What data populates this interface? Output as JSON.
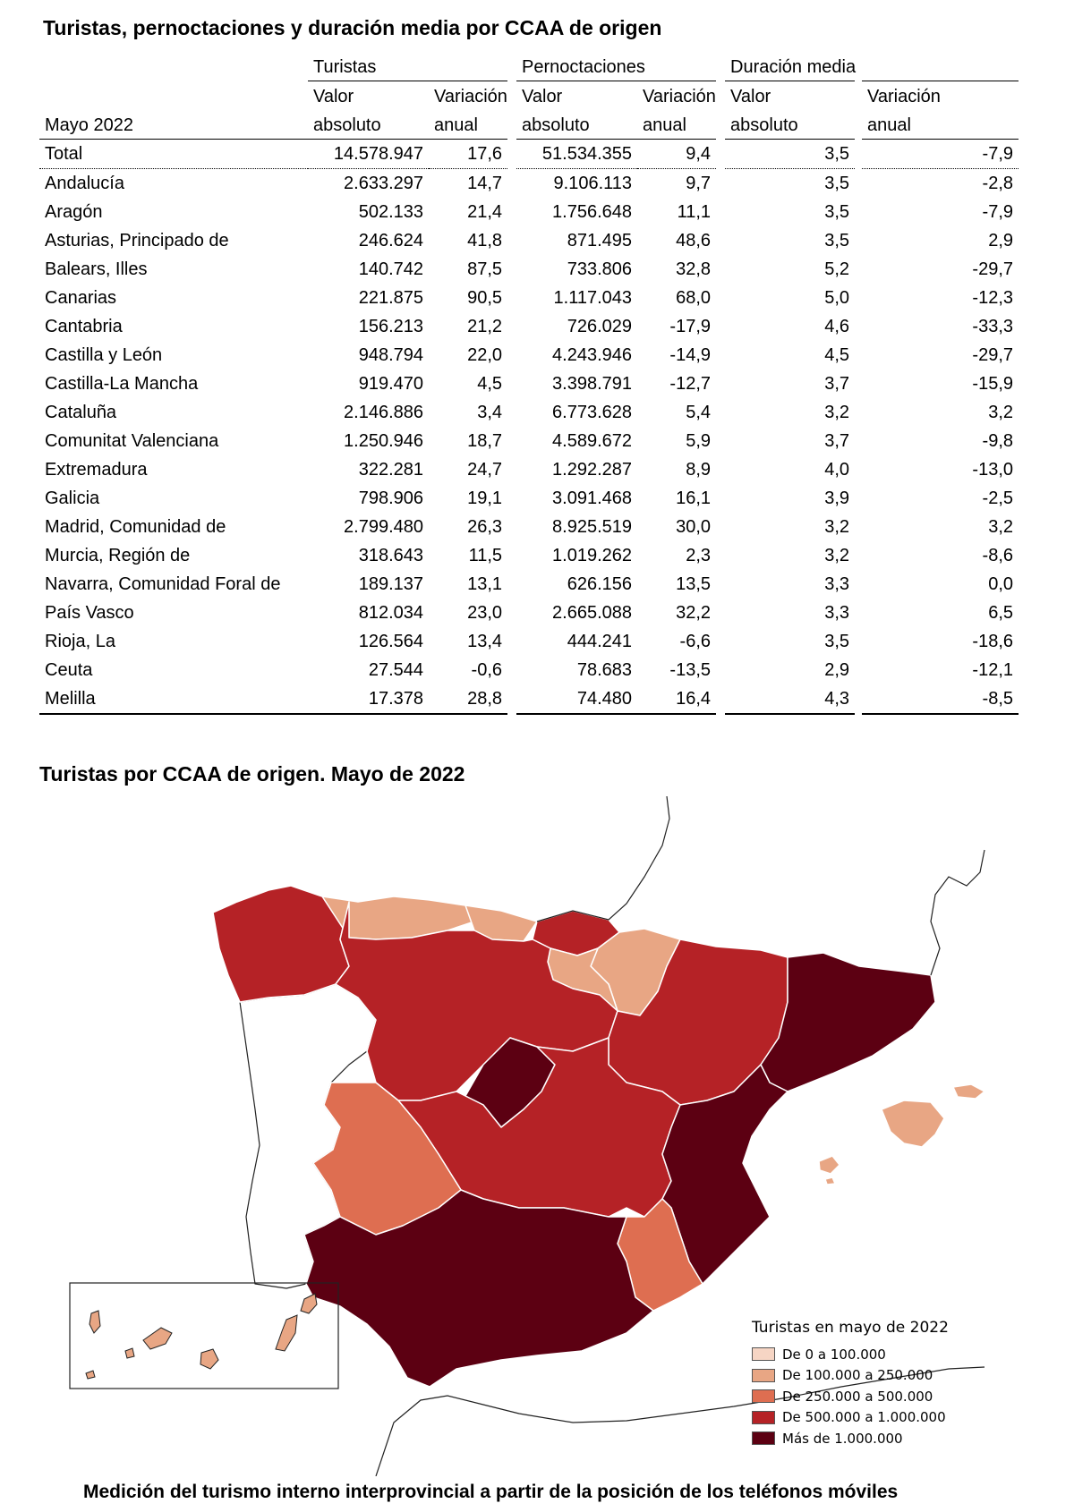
{
  "table": {
    "title": "Turistas, pernoctaciones y duración media por CCAA de origen",
    "period_label": "Mayo 2022",
    "groups": [
      "Turistas",
      "Pernoctaciones",
      "Duración media"
    ],
    "sub_top": [
      "Valor",
      "Variación",
      "Valor",
      "Variación",
      "Valor",
      "Variación"
    ],
    "sub_bottom": [
      "absoluto",
      "anual",
      "absoluto",
      "anual",
      "absoluto",
      "anual"
    ],
    "rows": [
      {
        "name": "Total",
        "t_abs": "14.578.947",
        "t_var": "17,6",
        "p_abs": "51.534.355",
        "p_var": "9,4",
        "d_abs": "3,5",
        "d_var": "-7,9"
      },
      {
        "name": "Andalucía",
        "t_abs": "2.633.297",
        "t_var": "14,7",
        "p_abs": "9.106.113",
        "p_var": "9,7",
        "d_abs": "3,5",
        "d_var": "-2,8"
      },
      {
        "name": "Aragón",
        "t_abs": "502.133",
        "t_var": "21,4",
        "p_abs": "1.756.648",
        "p_var": "11,1",
        "d_abs": "3,5",
        "d_var": "-7,9"
      },
      {
        "name": "Asturias, Principado de",
        "t_abs": "246.624",
        "t_var": "41,8",
        "p_abs": "871.495",
        "p_var": "48,6",
        "d_abs": "3,5",
        "d_var": "2,9"
      },
      {
        "name": "Balears, Illes",
        "t_abs": "140.742",
        "t_var": "87,5",
        "p_abs": "733.806",
        "p_var": "32,8",
        "d_abs": "5,2",
        "d_var": "-29,7"
      },
      {
        "name": "Canarias",
        "t_abs": "221.875",
        "t_var": "90,5",
        "p_abs": "1.117.043",
        "p_var": "68,0",
        "d_abs": "5,0",
        "d_var": "-12,3"
      },
      {
        "name": "Cantabria",
        "t_abs": "156.213",
        "t_var": "21,2",
        "p_abs": "726.029",
        "p_var": "-17,9",
        "d_abs": "4,6",
        "d_var": "-33,3"
      },
      {
        "name": "Castilla y León",
        "t_abs": "948.794",
        "t_var": "22,0",
        "p_abs": "4.243.946",
        "p_var": "-14,9",
        "d_abs": "4,5",
        "d_var": "-29,7"
      },
      {
        "name": "Castilla-La Mancha",
        "t_abs": "919.470",
        "t_var": "4,5",
        "p_abs": "3.398.791",
        "p_var": "-12,7",
        "d_abs": "3,7",
        "d_var": "-15,9"
      },
      {
        "name": "Cataluña",
        "t_abs": "2.146.886",
        "t_var": "3,4",
        "p_abs": "6.773.628",
        "p_var": "5,4",
        "d_abs": "3,2",
        "d_var": "3,2"
      },
      {
        "name": "Comunitat Valenciana",
        "t_abs": "1.250.946",
        "t_var": "18,7",
        "p_abs": "4.589.672",
        "p_var": "5,9",
        "d_abs": "3,7",
        "d_var": "-9,8"
      },
      {
        "name": "Extremadura",
        "t_abs": "322.281",
        "t_var": "24,7",
        "p_abs": "1.292.287",
        "p_var": "8,9",
        "d_abs": "4,0",
        "d_var": "-13,0"
      },
      {
        "name": "Galicia",
        "t_abs": "798.906",
        "t_var": "19,1",
        "p_abs": "3.091.468",
        "p_var": "16,1",
        "d_abs": "3,9",
        "d_var": "-2,5"
      },
      {
        "name": "Madrid, Comunidad de",
        "t_abs": "2.799.480",
        "t_var": "26,3",
        "p_abs": "8.925.519",
        "p_var": "30,0",
        "d_abs": "3,2",
        "d_var": "3,2"
      },
      {
        "name": "Murcia, Región de",
        "t_abs": "318.643",
        "t_var": "11,5",
        "p_abs": "1.019.262",
        "p_var": "2,3",
        "d_abs": "3,2",
        "d_var": "-8,6"
      },
      {
        "name": "Navarra, Comunidad Foral de",
        "t_abs": "189.137",
        "t_var": "13,1",
        "p_abs": "626.156",
        "p_var": "13,5",
        "d_abs": "3,3",
        "d_var": "0,0"
      },
      {
        "name": "País Vasco",
        "t_abs": "812.034",
        "t_var": "23,0",
        "p_abs": "2.665.088",
        "p_var": "32,2",
        "d_abs": "3,3",
        "d_var": "6,5"
      },
      {
        "name": "Rioja, La",
        "t_abs": "126.564",
        "t_var": "13,4",
        "p_abs": "444.241",
        "p_var": "-6,6",
        "d_abs": "3,5",
        "d_var": "-18,6"
      },
      {
        "name": "Ceuta",
        "t_abs": "27.544",
        "t_var": "-0,6",
        "p_abs": "78.683",
        "p_var": "-13,5",
        "d_abs": "2,9",
        "d_var": "-12,1"
      },
      {
        "name": "Melilla",
        "t_abs": "17.378",
        "t_var": "28,8",
        "p_abs": "74.480",
        "p_var": "16,4",
        "d_abs": "4,3",
        "d_var": "-8,5"
      }
    ]
  },
  "map": {
    "title": "Turistas por CCAA de origen. Mayo de 2022",
    "legend_title": "Turistas en mayo de 2022",
    "legend": [
      {
        "label": "De 0 a 100.000",
        "color": "#f6d5c4"
      },
      {
        "label": "De 100.000 a 250.000",
        "color": "#e8a684"
      },
      {
        "label": "De 250.000 a 500.000",
        "color": "#de6e51"
      },
      {
        "label": "De 500.000 a 1.000.000",
        "color": "#b52226"
      },
      {
        "label": "Más de 1.000.000",
        "color": "#5c0012"
      }
    ]
  },
  "footer": "Medición del turismo interno interprovincial a partir de la posición de los teléfonos móviles"
}
